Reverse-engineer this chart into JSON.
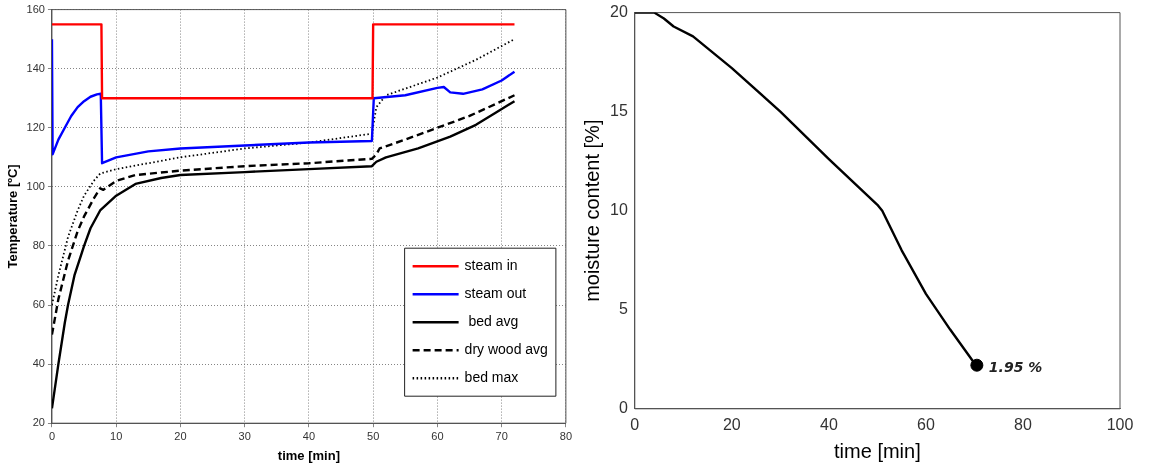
{
  "chart_data": [
    {
      "type": "line",
      "xlabel": "time [min]",
      "ylabel": "Temperature [ºC]",
      "xlim": [
        0,
        80
      ],
      "ylim": [
        20,
        160
      ],
      "xticks": [
        0,
        10,
        20,
        30,
        40,
        50,
        60,
        70,
        80
      ],
      "yticks": [
        20,
        40,
        60,
        80,
        100,
        120,
        140,
        160
      ],
      "grid": true,
      "legend": "bottom right",
      "series": [
        {
          "name": "steam in",
          "color": "#ff0000",
          "x": [
            0,
            7.7,
            7.8,
            49.9,
            50,
            72
          ],
          "values": [
            155,
            155,
            130,
            130,
            155,
            155
          ]
        },
        {
          "name": "steam out",
          "color": "#0000ff",
          "x": [
            0,
            0.1,
            1,
            2,
            3,
            4,
            5,
            6,
            7,
            7.6,
            7.8,
            10,
            15,
            20,
            30,
            40,
            49.8,
            50.1,
            55,
            60,
            61,
            62,
            64,
            67,
            70,
            72
          ],
          "values": [
            150,
            111,
            116,
            120,
            124,
            127,
            129,
            130.5,
            131.3,
            131.5,
            108,
            110,
            112,
            113,
            114,
            115,
            115.5,
            130,
            131,
            133.5,
            133.8,
            132,
            131.5,
            133,
            136,
            139
          ]
        },
        {
          "name": " bed avg",
          "color": "#000000",
          "x": [
            0,
            1,
            2,
            2.5,
            3.5,
            5,
            6,
            7.5,
            10,
            13,
            17,
            20,
            30,
            40,
            49.8,
            50.5,
            52,
            57,
            62,
            66,
            69,
            72
          ],
          "values": [
            25,
            40,
            54,
            60,
            70,
            80,
            86,
            92,
            97,
            101,
            103,
            104,
            105,
            106,
            107,
            108.5,
            110,
            113,
            117,
            121,
            125,
            129
          ]
        },
        {
          "name": "dry wood avg",
          "color": "#000000",
          "line_style": "dashed",
          "x": [
            0,
            1,
            2.5,
            4,
            5,
            6.5,
            7.5,
            8,
            10,
            13,
            20,
            30,
            40,
            49.8,
            50.5,
            51,
            55,
            60,
            65,
            69,
            72
          ],
          "values": [
            50,
            62,
            75,
            85,
            90,
            96,
            99.5,
            99,
            102,
            104,
            105.5,
            107,
            108,
            109.5,
            111,
            113,
            116,
            120,
            124,
            128,
            131
          ]
        },
        {
          "name": "bed max",
          "color": "#000000",
          "line_style": "dotted",
          "x": [
            0,
            1,
            2.5,
            4,
            5,
            6.5,
            7.5,
            10,
            15,
            20,
            30,
            40,
            49.8,
            50.5,
            52,
            60,
            66,
            72
          ],
          "values": [
            60,
            70,
            83,
            92,
            97,
            102,
            104.5,
            106,
            108,
            110,
            113,
            115,
            118,
            127,
            131,
            137,
            143,
            150
          ]
        }
      ]
    },
    {
      "type": "line",
      "xlabel": "time [min]",
      "ylabel": "moisture content [%]",
      "xlim": [
        0,
        100
      ],
      "ylim": [
        0,
        20
      ],
      "xticks": [
        0,
        20,
        40,
        60,
        80,
        100
      ],
      "yticks": [
        0,
        5,
        10,
        15,
        20
      ],
      "annotations": [
        {
          "text": "1.95 %",
          "x": 70.5,
          "y": 2.2
        }
      ],
      "series": [
        {
          "color": "#000000",
          "x": [
            0,
            4,
            6,
            8,
            12,
            20,
            30,
            40,
            50,
            51,
            55,
            60,
            65,
            70
          ],
          "values": [
            20,
            20,
            19.7,
            19.3,
            18.8,
            17.2,
            15,
            12.6,
            10.3,
            10,
            8,
            5.8,
            4,
            2.3
          ]
        },
        {
          "type": "scatter",
          "color": "#000000",
          "marker": "circle",
          "x": [
            70.5
          ],
          "values": [
            2.2
          ]
        }
      ]
    }
  ]
}
